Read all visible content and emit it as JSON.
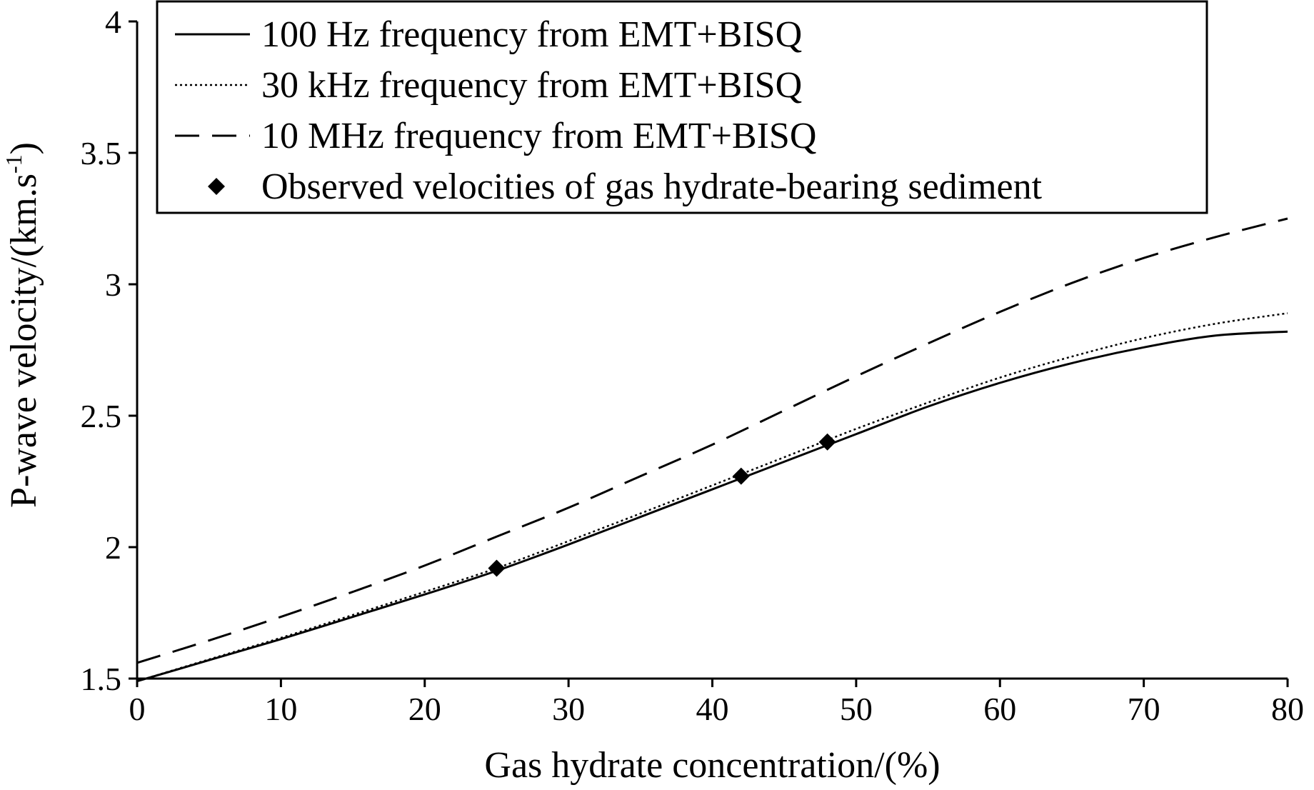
{
  "chart_data": {
    "type": "line",
    "title": "",
    "xlabel": "Gas hydrate concentration/(%)",
    "ylabel_main": "P-wave velocity/(km.s",
    "ylabel_sup": "-1",
    "ylabel_close": ")",
    "xlim": [
      0,
      80
    ],
    "ylim": [
      1.5,
      4
    ],
    "xticks": [
      0,
      10,
      20,
      30,
      40,
      50,
      60,
      70,
      80
    ],
    "yticks": [
      1.5,
      2,
      2.5,
      3,
      3.5,
      4
    ],
    "xtick_labels": [
      "0",
      "10",
      "20",
      "30",
      "40",
      "50",
      "60",
      "70",
      "80"
    ],
    "ytick_labels": [
      "1.5",
      "2",
      "2.5",
      "3",
      "3.5",
      "4"
    ],
    "legend_position": "top-left",
    "series": [
      {
        "name": "100 Hz frequency from EMT+BISQ",
        "style": "solid",
        "x": [
          0,
          5,
          10,
          15,
          20,
          25,
          30,
          35,
          40,
          45,
          50,
          55,
          60,
          65,
          70,
          75,
          80
        ],
        "y": [
          1.49,
          1.57,
          1.65,
          1.735,
          1.82,
          1.91,
          2.01,
          2.115,
          2.22,
          2.325,
          2.43,
          2.535,
          2.625,
          2.7,
          2.76,
          2.805,
          2.82
        ]
      },
      {
        "name": "30 kHz frequency from EMT+BISQ",
        "style": "dotted",
        "x": [
          0,
          5,
          10,
          15,
          20,
          25,
          30,
          35,
          40,
          45,
          50,
          55,
          60,
          65,
          70,
          75,
          80
        ],
        "y": [
          1.49,
          1.573,
          1.655,
          1.742,
          1.83,
          1.92,
          2.023,
          2.128,
          2.235,
          2.342,
          2.45,
          2.55,
          2.645,
          2.725,
          2.795,
          2.85,
          2.89
        ]
      },
      {
        "name": "10 MHz frequency from EMT+BISQ",
        "style": "dashed",
        "x": [
          0,
          5,
          10,
          15,
          20,
          25,
          30,
          35,
          40,
          45,
          50,
          55,
          60,
          65,
          70,
          75,
          80
        ],
        "y": [
          1.56,
          1.645,
          1.735,
          1.83,
          1.93,
          2.04,
          2.15,
          2.27,
          2.39,
          2.52,
          2.65,
          2.775,
          2.895,
          3.005,
          3.1,
          3.18,
          3.25
        ]
      }
    ],
    "observed": {
      "name": "Observed velocities of gas hydrate-bearing sediment",
      "marker": "diamond",
      "x": [
        25,
        42,
        48
      ],
      "y": [
        1.92,
        2.27,
        2.4
      ]
    }
  }
}
